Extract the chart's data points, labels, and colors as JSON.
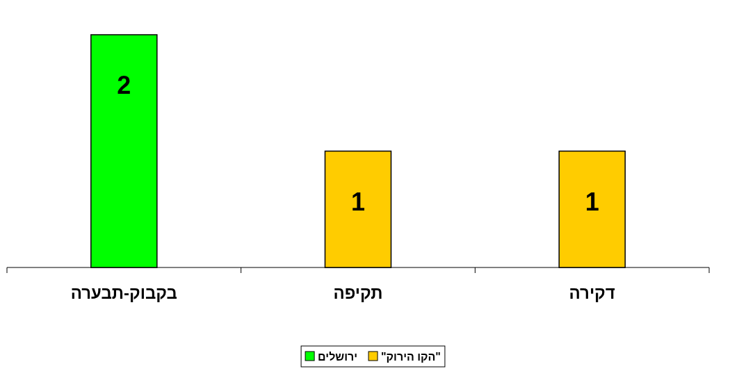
{
  "chart_data": {
    "type": "bar",
    "categories": [
      "בקבוק-תבערה",
      "תקיפה",
      "דקירה"
    ],
    "series": [
      {
        "name": "ירושלים",
        "color": "#00ff00",
        "values": [
          2,
          null,
          null
        ]
      },
      {
        "name": "\"הקו הירוק\"",
        "color": "#ffcc00",
        "values": [
          null,
          1,
          1
        ]
      }
    ],
    "ylim": [
      0,
      2
    ],
    "tick_labels": "x",
    "data_labels": true,
    "legend": "bottom",
    "grid": false
  }
}
